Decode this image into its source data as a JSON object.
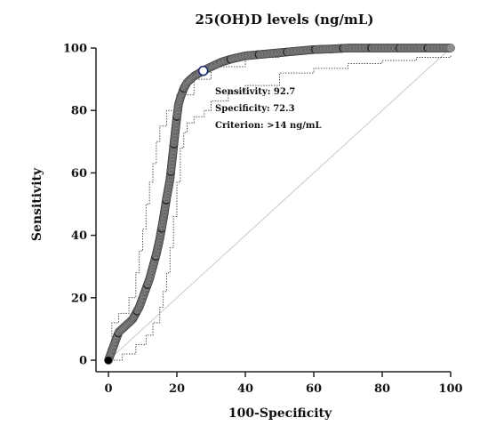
{
  "chart_data": {
    "type": "line",
    "title": "25(OH)D levels (ng/mL)",
    "xlabel": "100-Specificity",
    "ylabel": "Sensitivity",
    "xlim": [
      0,
      100
    ],
    "ylim": [
      0,
      100
    ],
    "xticks": [
      "0",
      "20",
      "40",
      "60",
      "80",
      "100"
    ],
    "yticks": [
      "0",
      "20",
      "40",
      "60",
      "80",
      "100"
    ],
    "grid": false,
    "series": [
      {
        "role": "roc-curve",
        "x": [
          0,
          1,
          2,
          3,
          5,
          7,
          8,
          9,
          10,
          11,
          12,
          13,
          14,
          15,
          16,
          17,
          18,
          18.5,
          19,
          19.5,
          20,
          20.5,
          21,
          22,
          23,
          25,
          27.7,
          30,
          33,
          36,
          40,
          45,
          50,
          55,
          60,
          65,
          70,
          80,
          90,
          100
        ],
        "y": [
          0,
          3,
          6,
          9,
          11,
          13,
          15,
          17,
          20,
          23,
          26,
          30,
          34,
          39,
          45,
          52,
          58,
          63,
          68,
          73,
          78,
          82,
          84,
          87,
          89,
          91,
          92.7,
          94,
          95.5,
          96.5,
          97.5,
          98,
          98.5,
          99,
          99.5,
          99.7,
          100,
          100,
          100,
          100
        ]
      },
      {
        "role": "upper-confidence-bound",
        "x": [
          0,
          1,
          3,
          6,
          8,
          9,
          10,
          11,
          12,
          13,
          14,
          15,
          17,
          20,
          25,
          30,
          40,
          50,
          60,
          70,
          100
        ],
        "y": [
          0,
          12,
          15,
          20,
          28,
          35,
          42,
          50,
          57,
          63,
          70,
          75,
          80,
          85,
          90,
          94,
          97,
          98.5,
          99.5,
          100,
          100
        ]
      },
      {
        "role": "lower-confidence-bound",
        "x": [
          0,
          4,
          8,
          11,
          13,
          15,
          16,
          17,
          18,
          19,
          20,
          21,
          22,
          23,
          25,
          28,
          30,
          35,
          40,
          50,
          60,
          70,
          80,
          90,
          100
        ],
        "y": [
          0,
          2,
          5,
          8,
          12,
          17,
          22,
          28,
          36,
          46,
          57,
          68,
          73,
          76,
          78,
          80,
          83,
          86,
          88,
          92,
          93.5,
          95,
          96,
          97,
          98
        ]
      },
      {
        "role": "diagonal-reference",
        "x": [
          0,
          100
        ],
        "y": [
          0,
          100
        ]
      }
    ],
    "criterion_point": {
      "x": 27.7,
      "y": 92.7
    },
    "annotations": [
      "Sensitivity: 92.7",
      "Specificity: 72.3",
      "Criterion: >14 ng/mL"
    ]
  }
}
